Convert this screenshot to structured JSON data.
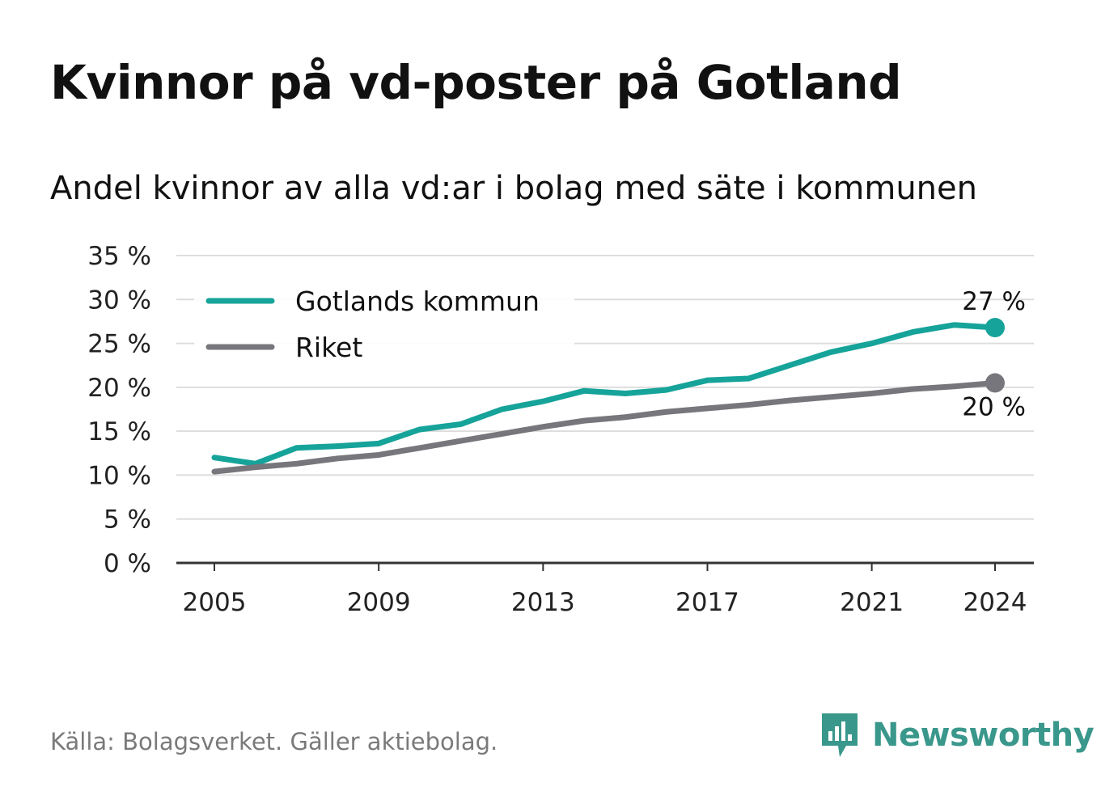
{
  "title": "Kvinnor på vd-poster på Gotland",
  "subtitle": "Andel kvinnor av alla vd:ar i bolag med säte i kommunen",
  "source": "Källa: Bolagsverket. Gäller aktiebolag.",
  "brand": {
    "name": "Newsworthy",
    "icon": "newsworthy-logo-icon",
    "color": "#3a978b"
  },
  "chart_data": {
    "type": "line",
    "title": "Kvinnor på vd-poster på Gotland",
    "subtitle": "Andel kvinnor av alla vd:ar i bolag med säte i kommunen",
    "xlabel": "",
    "ylabel": "",
    "x": [
      2005,
      2006,
      2007,
      2008,
      2009,
      2010,
      2011,
      2012,
      2013,
      2014,
      2015,
      2016,
      2017,
      2018,
      2019,
      2020,
      2021,
      2022,
      2023,
      2024
    ],
    "xticks": [
      "2005",
      "2009",
      "2013",
      "2017",
      "2021",
      "2024"
    ],
    "xlim": [
      2005,
      2024
    ],
    "ylim": [
      0,
      35
    ],
    "yticks": [
      "0 %",
      "5 %",
      "10 %",
      "15 %",
      "20 %",
      "25 %",
      "30 %",
      "35 %"
    ],
    "grid": true,
    "legend_position": "top-left",
    "series": [
      {
        "name": "Gotlands kommun",
        "color": "#16a39a",
        "values": [
          12.0,
          11.3,
          13.1,
          13.3,
          13.6,
          15.2,
          15.8,
          17.5,
          18.4,
          19.6,
          19.3,
          19.7,
          20.8,
          21.0,
          22.5,
          24.0,
          25.0,
          26.3,
          27.1,
          26.8
        ],
        "end_label": "27 %"
      },
      {
        "name": "Riket",
        "color": "#76767c",
        "values": [
          10.4,
          10.9,
          11.3,
          11.9,
          12.3,
          13.1,
          13.9,
          14.7,
          15.5,
          16.2,
          16.6,
          17.2,
          17.6,
          18.0,
          18.5,
          18.9,
          19.3,
          19.8,
          20.1,
          20.5
        ],
        "end_label": "20 %"
      }
    ]
  }
}
